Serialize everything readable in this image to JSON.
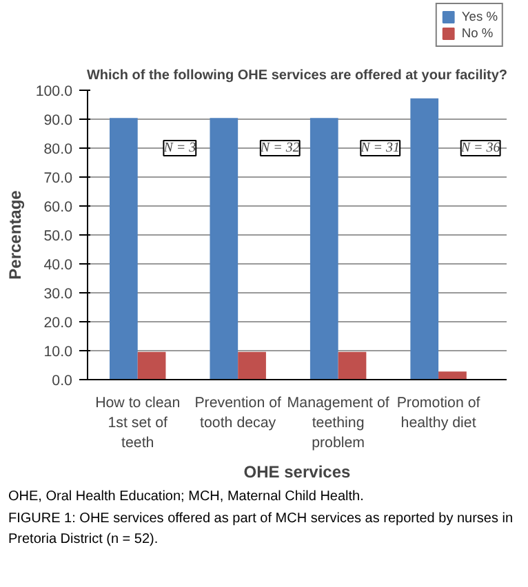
{
  "chart_data": {
    "type": "bar",
    "title": "Which of the following OHE services are offered at your facility?",
    "xlabel": "OHE services",
    "ylabel": "Percentage",
    "categories": [
      "How to clean 1st set of teeth",
      "Prevention of tooth decay",
      "Management of teething problem",
      "Promotion of healthy diet"
    ],
    "series": [
      {
        "name": "Yes %",
        "color": "#4f81bd",
        "values": [
          90.4,
          90.4,
          90.4,
          97.2
        ]
      },
      {
        "name": "No %",
        "color": "#c0504d",
        "values": [
          9.6,
          9.6,
          9.6,
          2.8
        ]
      }
    ],
    "ylim": [
      0,
      100
    ],
    "yticks": [
      {
        "value": 0,
        "label": "0.0"
      },
      {
        "value": 10,
        "label": "10.0"
      },
      {
        "value": 20,
        "label": "20.0"
      },
      {
        "value": 30,
        "label": "30.0"
      },
      {
        "value": 40,
        "label": "40.0"
      },
      {
        "value": 50,
        "label": "50.0"
      },
      {
        "value": 60,
        "label": "60.0"
      },
      {
        "value": 70,
        "label": "70.0"
      },
      {
        "value": 80,
        "label": "80.0"
      },
      {
        "value": 90,
        "label": "90.0"
      },
      {
        "value": 100,
        "label": "100.0"
      }
    ],
    "grid": "y",
    "legend": "top right",
    "annotations": [
      {
        "text": "N = 3",
        "x": "How to clean 1st set of teeth",
        "y": 80
      },
      {
        "text": "N = 32",
        "x": "Prevention of tooth decay",
        "y": 80
      },
      {
        "text": "N = 31",
        "x": "Management of teething problem",
        "y": 80
      },
      {
        "text": "N = 36",
        "x": "Promotion of healthy diet",
        "y": 80
      },
      "OHE, Oral Health Education; MCH, Maternal Child Health.",
      "FIGURE 1: OHE services offered as part of MCH services as reported by nurses in Pretoria District (n = 52)."
    ]
  }
}
